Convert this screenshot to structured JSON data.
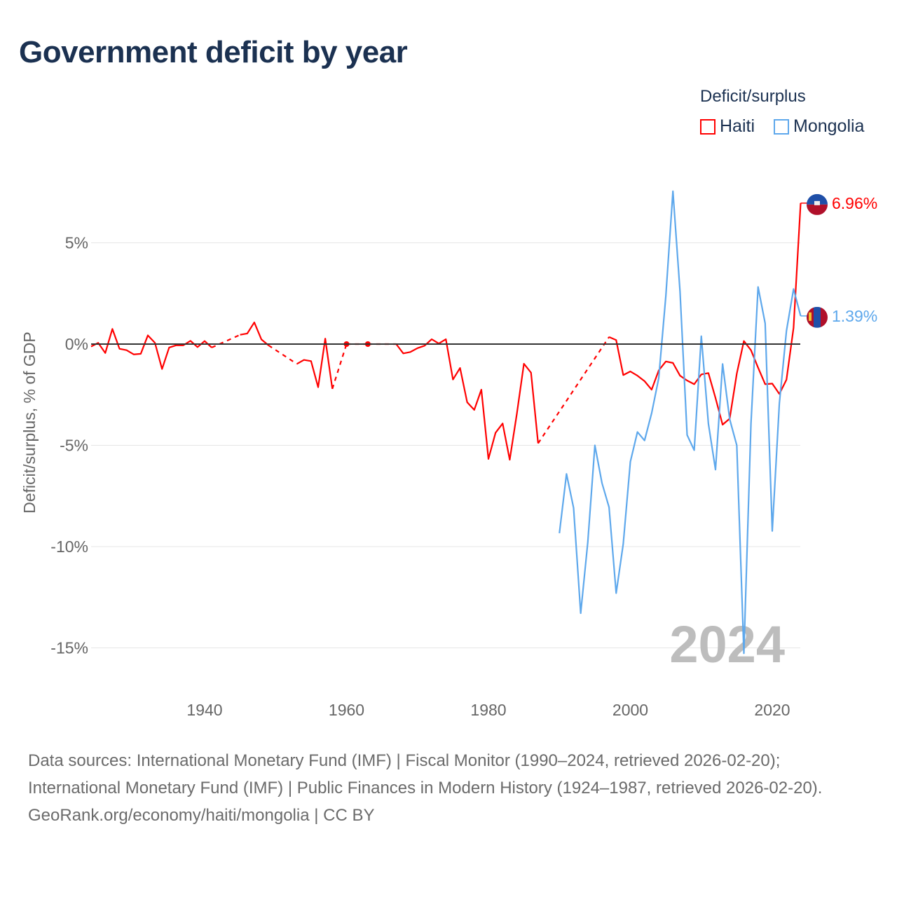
{
  "title": "Government deficit by year",
  "legend": {
    "title": "Deficit/surplus",
    "items": [
      {
        "name": "Haiti",
        "color": "#ff0000"
      },
      {
        "name": "Mongolia",
        "color": "#5ea8ec"
      }
    ]
  },
  "footer": {
    "sources": "Data sources: International Monetary Fund (IMF) | Fiscal Monitor (1990–2024, retrieved 2026-02-20); International Monetary Fund (IMF) | Public Finances in Modern History (1924–1987, retrieved 2026-02-20).",
    "credit": "GeoRank.org/economy/haiti/mongolia | CC BY"
  },
  "chart_data": {
    "type": "line",
    "title": "Government deficit by year",
    "xlabel": "",
    "ylabel": "Deficit/surplus, % of GDP",
    "xlim": [
      1924,
      2024
    ],
    "ylim": [
      -17,
      9
    ],
    "x_ticks": [
      1940,
      1960,
      1980,
      2000,
      2020
    ],
    "y_ticks": [
      {
        "v": 5,
        "label": "5%"
      },
      {
        "v": 0,
        "label": "0%"
      },
      {
        "v": -5,
        "label": "-5%"
      },
      {
        "v": -10,
        "label": "-10%"
      },
      {
        "v": -15,
        "label": "-15%"
      }
    ],
    "year_watermark": "2024",
    "series": [
      {
        "name": "Haiti",
        "color": "#ff0000",
        "end_label": "6.96%",
        "points": [
          [
            1924,
            -0.12
          ],
          [
            1925,
            0.06
          ],
          [
            1926,
            -0.44
          ],
          [
            1927,
            0.75
          ],
          [
            1928,
            -0.23
          ],
          [
            1929,
            -0.3
          ],
          [
            1930,
            -0.51
          ],
          [
            1931,
            -0.48
          ],
          [
            1932,
            0.43
          ],
          [
            1933,
            0.06
          ],
          [
            1934,
            -1.23
          ],
          [
            1935,
            -0.17
          ],
          [
            1936,
            -0.06
          ],
          [
            1937,
            -0.06
          ],
          [
            1938,
            0.16
          ],
          [
            1939,
            -0.15
          ],
          [
            1940,
            0.15
          ],
          [
            1941,
            -0.17
          ],
          [
            1945,
            0.46
          ],
          [
            1946,
            0.52
          ],
          [
            1947,
            1.07
          ],
          [
            1948,
            0.23
          ],
          [
            1949,
            -0.06
          ],
          [
            1953,
            -0.98
          ],
          [
            1954,
            -0.78
          ],
          [
            1955,
            -0.84
          ],
          [
            1956,
            -2.13
          ],
          [
            1957,
            0.27
          ],
          [
            1958,
            -2.21
          ],
          [
            1960,
            0.0
          ],
          [
            1963,
            0.0
          ],
          [
            1967,
            0.0
          ],
          [
            1968,
            -0.46
          ],
          [
            1969,
            -0.39
          ],
          [
            1970,
            -0.2
          ],
          [
            1971,
            -0.08
          ],
          [
            1972,
            0.24
          ],
          [
            1973,
            0.03
          ],
          [
            1974,
            0.24
          ],
          [
            1975,
            -1.75
          ],
          [
            1976,
            -1.18
          ],
          [
            1977,
            -2.87
          ],
          [
            1978,
            -3.25
          ],
          [
            1979,
            -2.25
          ],
          [
            1980,
            -5.67
          ],
          [
            1981,
            -4.38
          ],
          [
            1982,
            -3.92
          ],
          [
            1983,
            -5.71
          ],
          [
            1984,
            -3.45
          ],
          [
            1985,
            -0.97
          ],
          [
            1986,
            -1.41
          ],
          [
            1987,
            -4.9
          ],
          [
            1997,
            0.35
          ],
          [
            1998,
            0.2
          ],
          [
            1999,
            -1.53
          ],
          [
            2000,
            -1.35
          ],
          [
            2001,
            -1.56
          ],
          [
            2002,
            -1.83
          ],
          [
            2003,
            -2.25
          ],
          [
            2004,
            -1.3
          ],
          [
            2005,
            -0.86
          ],
          [
            2006,
            -0.93
          ],
          [
            2007,
            -1.56
          ],
          [
            2008,
            -1.8
          ],
          [
            2009,
            -1.98
          ],
          [
            2010,
            -1.5
          ],
          [
            2011,
            -1.43
          ],
          [
            2012,
            -2.66
          ],
          [
            2013,
            -3.98
          ],
          [
            2014,
            -3.68
          ],
          [
            2015,
            -1.46
          ],
          [
            2016,
            0.15
          ],
          [
            2017,
            -0.3
          ],
          [
            2018,
            -1.16
          ],
          [
            2019,
            -1.98
          ],
          [
            2020,
            -1.95
          ],
          [
            2021,
            -2.46
          ],
          [
            2022,
            -1.76
          ],
          [
            2023,
            0.8
          ],
          [
            2024,
            6.96
          ]
        ]
      },
      {
        "name": "Mongolia",
        "color": "#5ea8ec",
        "end_label": "1.39%",
        "points": [
          [
            1990,
            -9.34
          ],
          [
            1991,
            -6.41
          ],
          [
            1992,
            -8.09
          ],
          [
            1993,
            -13.29
          ],
          [
            1994,
            -9.79
          ],
          [
            1995,
            -5.0
          ],
          [
            1996,
            -6.86
          ],
          [
            1997,
            -8.06
          ],
          [
            1998,
            -12.3
          ],
          [
            1999,
            -9.86
          ],
          [
            2000,
            -5.81
          ],
          [
            2001,
            -4.34
          ],
          [
            2002,
            -4.76
          ],
          [
            2003,
            -3.41
          ],
          [
            2004,
            -1.68
          ],
          [
            2005,
            2.37
          ],
          [
            2006,
            7.55
          ],
          [
            2007,
            2.6
          ],
          [
            2008,
            -4.49
          ],
          [
            2009,
            -5.24
          ],
          [
            2010,
            0.39
          ],
          [
            2011,
            -3.93
          ],
          [
            2012,
            -6.2
          ],
          [
            2013,
            -0.98
          ],
          [
            2014,
            -3.71
          ],
          [
            2015,
            -5.0
          ],
          [
            2016,
            -15.27
          ],
          [
            2017,
            -3.93
          ],
          [
            2018,
            2.82
          ],
          [
            2019,
            1.02
          ],
          [
            2020,
            -9.23
          ],
          [
            2021,
            -2.93
          ],
          [
            2022,
            0.65
          ],
          [
            2023,
            2.72
          ],
          [
            2024,
            1.39
          ]
        ]
      }
    ]
  }
}
